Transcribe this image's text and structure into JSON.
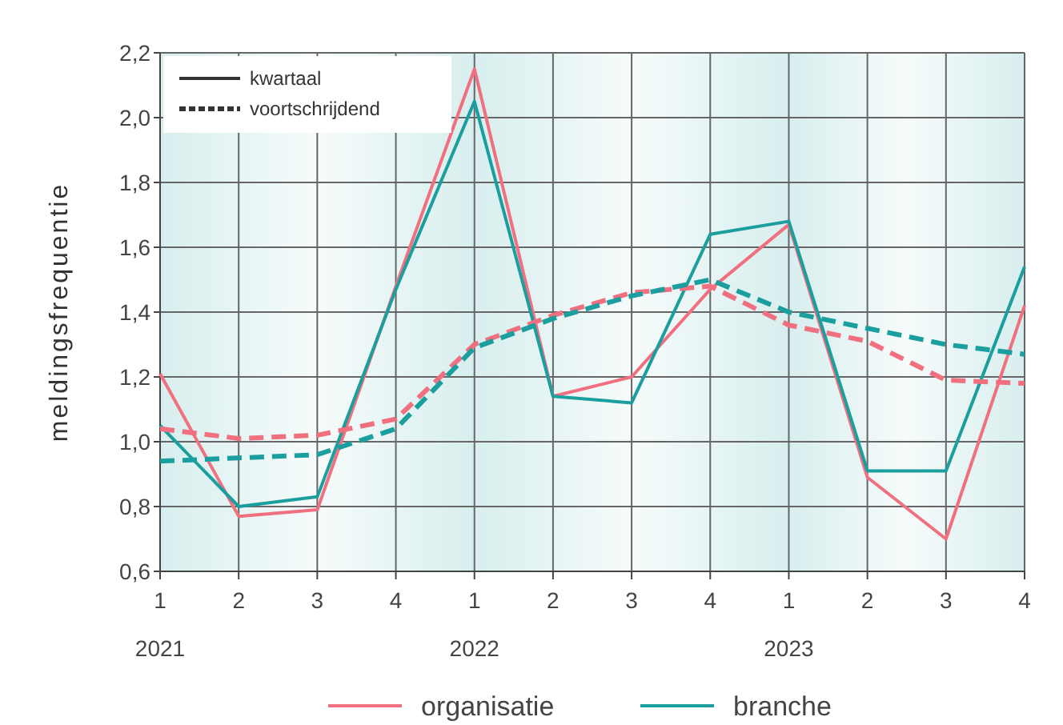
{
  "chart_data": {
    "type": "line",
    "ylabel": "meldingsfrequentie",
    "categories": [
      "1",
      "2",
      "3",
      "4",
      "1",
      "2",
      "3",
      "4",
      "1",
      "2",
      "3",
      "4"
    ],
    "ylim": [
      0.6,
      2.2
    ],
    "yticks": [
      {
        "value": 0.6,
        "label": "0,6"
      },
      {
        "value": 0.8,
        "label": "0,8"
      },
      {
        "value": 1.0,
        "label": "1,0"
      },
      {
        "value": 1.2,
        "label": "1,2"
      },
      {
        "value": 1.4,
        "label": "1,4"
      },
      {
        "value": 1.6,
        "label": "1,6"
      },
      {
        "value": 1.8,
        "label": "1,8"
      },
      {
        "value": 2.0,
        "label": "2,0"
      },
      {
        "value": 2.2,
        "label": "2,2"
      }
    ],
    "grid": true,
    "legend": "bottom",
    "marker": "none",
    "annotations": [
      "2021",
      "2022",
      "2023",
      "kwartaal",
      "voortschrijdend"
    ],
    "series": [
      {
        "name": "organisatie",
        "color": "#f0707f",
        "line_style": "solid",
        "values": [
          1.21,
          0.77,
          0.79,
          1.48,
          2.15,
          1.14,
          1.2,
          1.47,
          1.67,
          0.89,
          0.7,
          1.42
        ]
      },
      {
        "name": "branche",
        "color": "#1a9e9e",
        "line_style": "solid",
        "values": [
          1.05,
          0.8,
          0.83,
          1.47,
          2.05,
          1.14,
          1.12,
          1.64,
          1.68,
          0.91,
          0.91,
          1.54
        ]
      },
      {
        "color": "#f0707f",
        "line_style": "dashed",
        "values": [
          1.04,
          1.01,
          1.02,
          1.07,
          1.3,
          1.39,
          1.46,
          1.48,
          1.36,
          1.31,
          1.19,
          1.18
        ]
      },
      {
        "color": "#1a9e9e",
        "line_style": "dashed",
        "values": [
          0.94,
          0.95,
          0.96,
          1.04,
          1.29,
          1.38,
          1.45,
          1.5,
          1.4,
          1.35,
          1.3,
          1.27
        ]
      }
    ]
  }
}
